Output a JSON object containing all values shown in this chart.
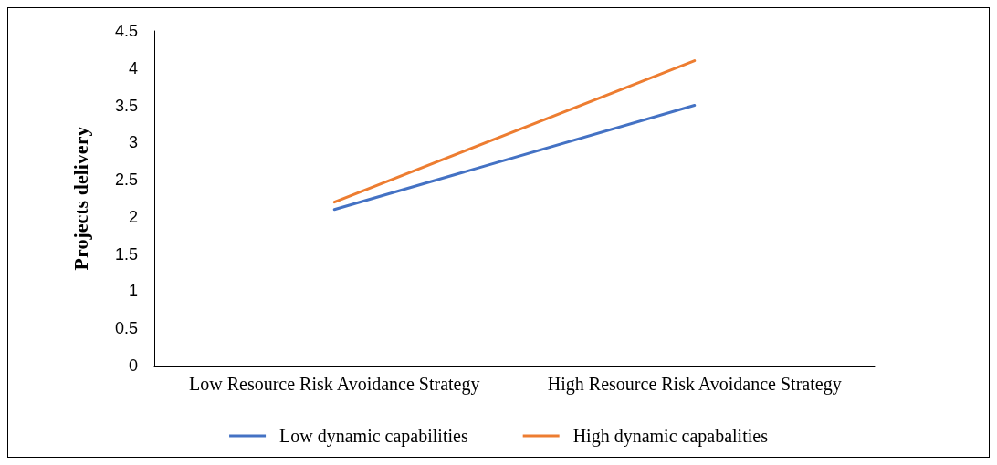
{
  "chart_data": {
    "type": "line",
    "ylabel": "Projects delivery",
    "categories": [
      "Low Resource Risk Avoidance Strategy",
      "High Resource Risk Avoidance Strategy"
    ],
    "series": [
      {
        "name": "Low dynamic capabilities",
        "color": "#4472c4",
        "values": [
          2.1,
          3.5
        ]
      },
      {
        "name": "High dynamic capabalities",
        "color": "#ed7d31",
        "values": [
          2.2,
          4.1
        ]
      }
    ],
    "ylim": [
      0,
      4.5
    ],
    "yticks": [
      0,
      0.5,
      1,
      1.5,
      2,
      2.5,
      3,
      3.5,
      4,
      4.5
    ],
    "grid": false,
    "legend": "bottom",
    "marker": "none",
    "line_style": "solid"
  }
}
